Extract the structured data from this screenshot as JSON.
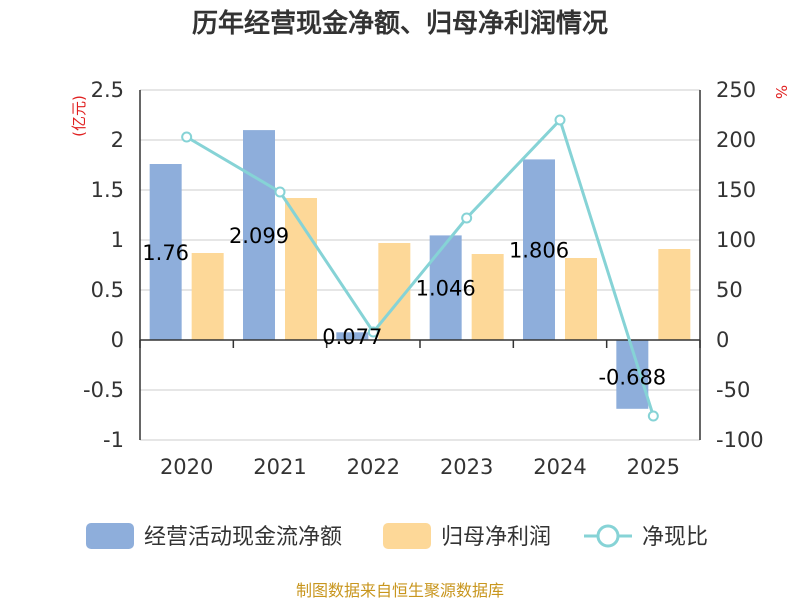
{
  "chart_data": {
    "type": "bar+line",
    "title": "历年经营现金净额、归母净利润情况",
    "categories": [
      "2020",
      "2021",
      "2022",
      "2023",
      "2024",
      "2025"
    ],
    "series": [
      {
        "name": "经营活动现金流净额",
        "type": "bar",
        "axis": "left",
        "color": "#8eaedb",
        "values": [
          1.76,
          2.099,
          0.077,
          1.046,
          1.806,
          -0.688
        ],
        "labels": [
          "1.76",
          "2.099",
          "0.077",
          "1.046",
          "1.806",
          "-0.688"
        ]
      },
      {
        "name": "归母净利润",
        "type": "bar",
        "axis": "left",
        "color": "#fdd898",
        "values": [
          0.87,
          1.42,
          0.97,
          0.86,
          0.82,
          0.91
        ]
      },
      {
        "name": "净现比",
        "type": "line",
        "axis": "right",
        "color": "#86d3d6",
        "values": [
          203,
          148,
          8,
          122,
          220,
          -76
        ]
      }
    ],
    "left_axis": {
      "unit": "(亿元)",
      "min": -1,
      "max": 2.5,
      "ticks": [
        "-1",
        "-0.5",
        "0",
        "0.5",
        "1",
        "1.5",
        "2",
        "2.5"
      ]
    },
    "right_axis": {
      "unit": "%",
      "min": -100,
      "max": 250,
      "ticks": [
        "-100",
        "-50",
        "0",
        "50",
        "100",
        "150",
        "200",
        "250"
      ]
    },
    "unit_color": "#e02020",
    "source": "制图数据来自恒生聚源数据库"
  }
}
